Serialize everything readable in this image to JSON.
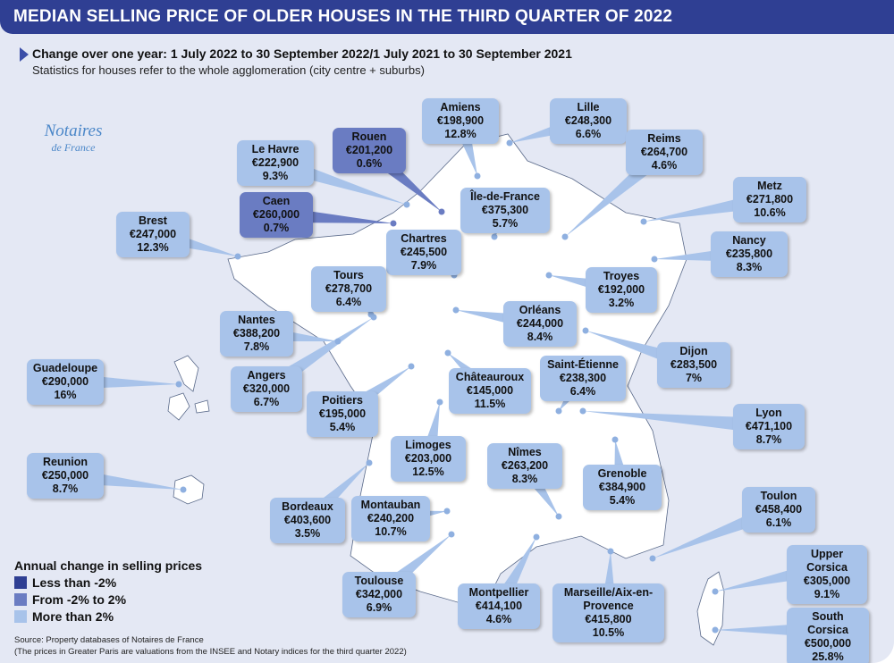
{
  "header": {
    "title": "MEDIAN SELLING PRICE OF OLDER HOUSES IN THE THIRD QUARTER OF 2022"
  },
  "subtitle": {
    "line1": "Change over one year: 1 July 2022 to 30 September 2022/1 July 2021 to 30 September 2021",
    "line2": "Statistics for houses refer to the whole agglomeration (city centre + suburbs)"
  },
  "logo": {
    "line1": "Notaires",
    "line2": "de France"
  },
  "colors": {
    "header": "#2f3f93",
    "less_than_minus2": "#2f3f93",
    "minus2_to_2": "#6a7cc2",
    "more_than_2": "#a8c3ea",
    "background": "#e4e8f4",
    "land": "#ffffff",
    "dot": "#8fb0e0"
  },
  "legend": {
    "title": "Annual change in selling prices",
    "items": [
      {
        "label": "Less than -2%",
        "level": "low"
      },
      {
        "label": "From -2% to 2%",
        "level": "mid"
      },
      {
        "label": "More than 2%",
        "level": "high"
      }
    ]
  },
  "source": {
    "line1": "Source: Property databases of Notaires de France",
    "line2": "(The prices in Greater Paris are valuations from the INSEE and Notary indices for the third quarter 2022)"
  },
  "cities": [
    {
      "name": "Amiens",
      "price": "€198,900",
      "change": "12.8%",
      "level": "high"
    },
    {
      "name": "Lille",
      "price": "€248,300",
      "change": "6.6%",
      "level": "high"
    },
    {
      "name": "Rouen",
      "price": "€201,200",
      "change": "0.6%",
      "level": "mid"
    },
    {
      "name": "Le Havre",
      "price": "€222,900",
      "change": "9.3%",
      "level": "high"
    },
    {
      "name": "Reims",
      "price": "€264,700",
      "change": "4.6%",
      "level": "high"
    },
    {
      "name": "Caen",
      "price": "€260,000",
      "change": "0.7%",
      "level": "mid"
    },
    {
      "name": "Île-de-France",
      "price": "€375,300",
      "change": "5.7%",
      "level": "high"
    },
    {
      "name": "Metz",
      "price": "€271,800",
      "change": "10.6%",
      "level": "high"
    },
    {
      "name": "Brest",
      "price": "€247,000",
      "change": "12.3%",
      "level": "high"
    },
    {
      "name": "Chartres",
      "price": "€245,500",
      "change": "7.9%",
      "level": "high"
    },
    {
      "name": "Nancy",
      "price": "€235,800",
      "change": "8.3%",
      "level": "high"
    },
    {
      "name": "Tours",
      "price": "€278,700",
      "change": "6.4%",
      "level": "high"
    },
    {
      "name": "Troyes",
      "price": "€192,000",
      "change": "3.2%",
      "level": "high"
    },
    {
      "name": "Orléans",
      "price": "€244,000",
      "change": "8.4%",
      "level": "high"
    },
    {
      "name": "Nantes",
      "price": "€388,200",
      "change": "7.8%",
      "level": "high"
    },
    {
      "name": "Dijon",
      "price": "€283,500",
      "change": "7%",
      "level": "high"
    },
    {
      "name": "Guadeloupe",
      "price": "€290,000",
      "change": "16%",
      "level": "high"
    },
    {
      "name": "Angers",
      "price": "€320,000",
      "change": "6.7%",
      "level": "high"
    },
    {
      "name": "Saint-Étienne",
      "price": "€238,300",
      "change": "6.4%",
      "level": "high"
    },
    {
      "name": "Châteauroux",
      "price": "€145,000",
      "change": "11.5%",
      "level": "high"
    },
    {
      "name": "Poitiers",
      "price": "€195,000",
      "change": "5.4%",
      "level": "high"
    },
    {
      "name": "Lyon",
      "price": "€471,100",
      "change": "8.7%",
      "level": "high"
    },
    {
      "name": "Limoges",
      "price": "€203,000",
      "change": "12.5%",
      "level": "high"
    },
    {
      "name": "Nîmes",
      "price": "€263,200",
      "change": "8.3%",
      "level": "high"
    },
    {
      "name": "Reunion",
      "price": "€250,000",
      "change": "8.7%",
      "level": "high"
    },
    {
      "name": "Grenoble",
      "price": "€384,900",
      "change": "5.4%",
      "level": "high"
    },
    {
      "name": "Toulon",
      "price": "€458,400",
      "change": "6.1%",
      "level": "high"
    },
    {
      "name": "Bordeaux",
      "price": "€403,600",
      "change": "3.5%",
      "level": "high"
    },
    {
      "name": "Montauban",
      "price": "€240,200",
      "change": "10.7%",
      "level": "high"
    },
    {
      "name": "Upper Corsica",
      "price": "€305,000",
      "change": "9.1%",
      "level": "high"
    },
    {
      "name": "Toulouse",
      "price": "€342,000",
      "change": "6.9%",
      "level": "high"
    },
    {
      "name": "Montpellier",
      "price": "€414,100",
      "change": "4.6%",
      "level": "high"
    },
    {
      "name": "Marseille/Aix-en-Provence",
      "price": "€415,800",
      "change": "10.5%",
      "level": "high"
    },
    {
      "name": "South Corsica",
      "price": "€500,000",
      "change": "25.8%",
      "level": "high"
    }
  ]
}
